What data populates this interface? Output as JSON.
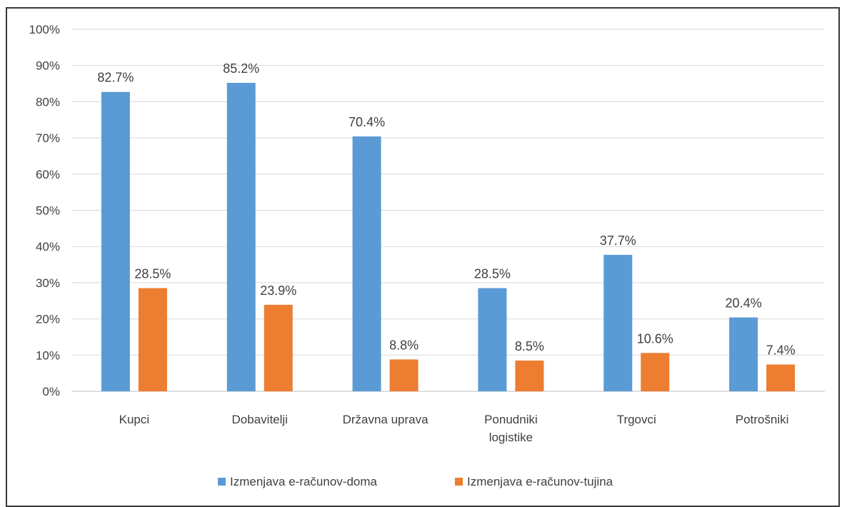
{
  "chart_data": {
    "type": "bar",
    "categories": [
      [
        "Kupci"
      ],
      [
        "Dobavitelji"
      ],
      [
        "Državna uprava"
      ],
      [
        "Ponudniki",
        "logistike"
      ],
      [
        "Trgovci"
      ],
      [
        "Potrošniki"
      ]
    ],
    "series": [
      {
        "name": "Izmenjava e-računov-doma",
        "color": "#5B9BD5",
        "values": [
          82.7,
          85.2,
          70.4,
          28.5,
          37.7,
          20.4
        ],
        "labels": [
          "82.7%",
          "85.2%",
          "70.4%",
          "28.5%",
          "37.7%",
          "20.4%"
        ]
      },
      {
        "name": "Izmenjava e-računov-tujina",
        "color": "#ED7D31",
        "values": [
          28.5,
          23.9,
          8.8,
          8.5,
          10.6,
          7.4
        ],
        "labels": [
          "28.5%",
          "23.9%",
          "8.8%",
          "8.5%",
          "10.6%",
          "7.4%"
        ]
      }
    ],
    "ylim": [
      0,
      100
    ],
    "yticks": [
      "0%",
      "10%",
      "20%",
      "30%",
      "40%",
      "50%",
      "60%",
      "70%",
      "80%",
      "90%",
      "100%"
    ],
    "grid": true,
    "legend_position": "bottom"
  }
}
